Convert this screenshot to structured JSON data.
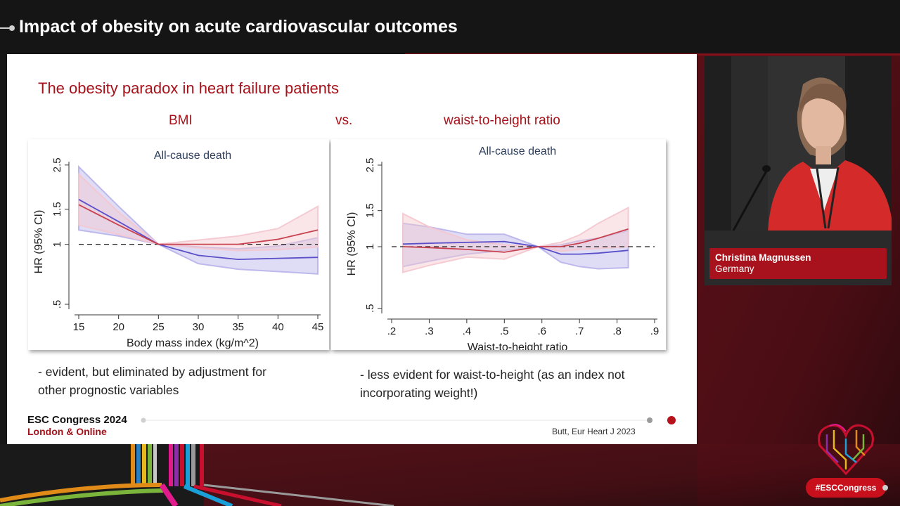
{
  "header": {
    "title": "Impact of obesity on acute cardiovascular outcomes"
  },
  "slide": {
    "title": "The obesity paradox in heart failure patients",
    "left_heading": "BMI",
    "vs_label": "vs.",
    "right_heading": "waist-to-height ratio",
    "left_bullet_line1": "- evident, but eliminated by adjustment for",
    "left_bullet_line2": "other prognostic variables",
    "right_bullet_line1": "- less evident for waist-to-height (as an index not",
    "right_bullet_line2": "incorporating weight!)",
    "footer": {
      "event": "ESC Congress 2024",
      "location": "London & Online",
      "citation": "Butt, Eur Heart J 2023"
    }
  },
  "speaker": {
    "name": "Christina Magnussen",
    "country": "Germany"
  },
  "hashtag": "#ESCCongress",
  "colors": {
    "brand_red": "#a6121a",
    "blue_series": "#5b4fc9",
    "red_series": "#c9424f",
    "blue_ci": "#b7b3ea",
    "red_ci": "#f4c7cf"
  },
  "chart_data": [
    {
      "type": "line",
      "title": "All-cause death",
      "xlabel": "Body mass index (kg/m^2)",
      "ylabel": "HR (95% CI)",
      "scale_y": "log",
      "xlim": [
        15,
        45
      ],
      "ylim": [
        0.48,
        2.6
      ],
      "x_ticks": [
        15,
        20,
        25,
        30,
        35,
        40,
        45
      ],
      "x_tick_labels": [
        "15",
        "20",
        "25",
        "30",
        "35",
        "40",
        "45"
      ],
      "y_ticks": [
        0.5,
        1,
        1.5,
        2.5
      ],
      "y_tick_labels": [
        ".5",
        "1",
        "1.5",
        "2.5"
      ],
      "reference_line": 1,
      "series": [
        {
          "color": "blue",
          "x": [
            15,
            20,
            25,
            30,
            35,
            40,
            45
          ],
          "values": [
            1.68,
            1.3,
            1.0,
            0.88,
            0.84,
            0.85,
            0.86
          ],
          "lower": [
            1.18,
            1.1,
            1.0,
            0.8,
            0.75,
            0.73,
            0.71
          ],
          "upper": [
            2.45,
            1.55,
            1.0,
            0.97,
            0.95,
            0.98,
            1.08
          ]
        },
        {
          "color": "red",
          "x": [
            15,
            20,
            25,
            30,
            35,
            40,
            45
          ],
          "values": [
            1.58,
            1.25,
            1.0,
            1.0,
            1.0,
            1.06,
            1.18
          ],
          "lower": [
            1.25,
            1.12,
            1.0,
            0.96,
            0.93,
            0.94,
            0.97
          ],
          "upper": [
            2.25,
            1.45,
            1.0,
            1.05,
            1.1,
            1.2,
            1.55
          ]
        }
      ]
    },
    {
      "type": "line",
      "title": "All-cause death",
      "xlabel": "Waist-to-height ratio",
      "ylabel": "HR (95% CI)",
      "scale_y": "log",
      "xlim": [
        0.2,
        0.9
      ],
      "ylim": [
        0.48,
        2.6
      ],
      "x_ticks": [
        0.2,
        0.3,
        0.4,
        0.5,
        0.6,
        0.7,
        0.8,
        0.9
      ],
      "x_tick_labels": [
        ".2",
        ".3",
        ".4",
        ".5",
        ".6",
        ".7",
        ".8",
        ".9"
      ],
      "y_ticks": [
        0.5,
        1,
        1.5,
        2.5
      ],
      "y_tick_labels": [
        ".5",
        "1",
        "1.5",
        "2.5"
      ],
      "reference_line": 1,
      "series": [
        {
          "color": "blue",
          "x": [
            0.23,
            0.3,
            0.4,
            0.5,
            0.59,
            0.65,
            0.7,
            0.75,
            0.83
          ],
          "values": [
            1.03,
            1.04,
            1.05,
            1.06,
            1.0,
            0.92,
            0.92,
            0.93,
            0.96
          ],
          "lower": [
            0.8,
            0.85,
            0.92,
            0.96,
            1.0,
            0.84,
            0.8,
            0.78,
            0.79
          ],
          "upper": [
            1.3,
            1.25,
            1.15,
            1.15,
            1.0,
            1.02,
            1.07,
            1.1,
            1.2
          ]
        },
        {
          "color": "red",
          "x": [
            0.23,
            0.3,
            0.4,
            0.5,
            0.59,
            0.65,
            0.7,
            0.75,
            0.83
          ],
          "values": [
            1.0,
            0.99,
            0.97,
            0.94,
            1.0,
            1.0,
            1.04,
            1.1,
            1.22
          ],
          "lower": [
            0.75,
            0.81,
            0.89,
            0.87,
            1.0,
            0.95,
            0.97,
            0.98,
            1.0
          ],
          "upper": [
            1.45,
            1.25,
            1.08,
            1.02,
            1.0,
            1.05,
            1.14,
            1.3,
            1.55
          ]
        }
      ]
    }
  ]
}
